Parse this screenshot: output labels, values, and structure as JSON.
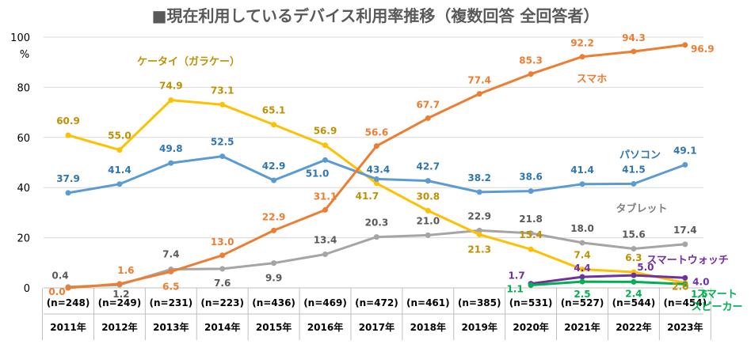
{
  "chart_data": {
    "type": "line",
    "title": "■現在利用しているデバイス利用率推移（複数回答 全回答者）",
    "ylabel_top": "100",
    "yunit": "%",
    "ylim": [
      0,
      100
    ],
    "yticks": [
      0,
      20,
      40,
      60,
      80,
      100
    ],
    "categories": [
      "2011年",
      "2012年",
      "2013年",
      "2014年",
      "2015年",
      "2016年",
      "2017年",
      "2018年",
      "2019年",
      "2020年",
      "2021年",
      "2022年",
      "2023年"
    ],
    "n_counts": [
      "(n=248)",
      "(n=249)",
      "(n=231)",
      "(n=223)",
      "(n=436)",
      "(n=469)",
      "(n=472)",
      "(n=461)",
      "(n=385)",
      "(n=531)",
      "(n=527)",
      "(n=544)",
      "(n=454)"
    ],
    "series": [
      {
        "name": "ケータイ（ガラケー）",
        "color": "#FFC000",
        "labelColor": "#BF9000",
        "values": [
          60.9,
          55.0,
          74.9,
          73.1,
          65.1,
          56.9,
          41.7,
          30.8,
          21.3,
          15.4,
          7.4,
          6.3,
          2.0
        ],
        "labels": [
          "60.9",
          "55.0",
          "74.9",
          "73.1",
          "65.1",
          "56.9",
          "41.7",
          "30.8",
          "21.3",
          "15.4",
          "7.4",
          "6.3",
          "2.0"
        ]
      },
      {
        "name": "スマホ",
        "color": "#ED7D31",
        "labelColor": "#ED7D31",
        "values": [
          0.0,
          1.6,
          6.5,
          13.0,
          22.9,
          31.1,
          56.6,
          67.7,
          77.4,
          85.3,
          92.2,
          94.3,
          96.9
        ],
        "labels": [
          "0.0",
          "1.6",
          "6.5",
          "13.0",
          "22.9",
          "31.1",
          "56.6",
          "67.7",
          "77.4",
          "85.3",
          "92.2",
          "94.3",
          "96.9"
        ]
      },
      {
        "name": "パソコン",
        "color": "#5B9BD5",
        "labelColor": "#2E75B6",
        "values": [
          37.9,
          41.4,
          49.8,
          52.5,
          42.9,
          51.0,
          43.4,
          42.7,
          38.2,
          38.6,
          41.4,
          41.5,
          49.1
        ],
        "labels": [
          "37.9",
          "41.4",
          "49.8",
          "52.5",
          "42.9",
          "51.0",
          "43.4",
          "42.7",
          "38.2",
          "38.6",
          "41.4",
          "41.5",
          "49.1"
        ]
      },
      {
        "name": "タブレット",
        "color": "#A5A5A5",
        "labelColor": "#595959",
        "values": [
          0.4,
          1.2,
          7.4,
          7.6,
          9.9,
          13.4,
          20.3,
          21.0,
          22.9,
          21.8,
          18.0,
          15.6,
          17.4
        ],
        "labels": [
          "0.4",
          "1.2",
          "7.4",
          "7.6",
          "9.9",
          "13.4",
          "20.3",
          "21.0",
          "22.9",
          "21.8",
          "18.0",
          "15.6",
          "17.4"
        ]
      },
      {
        "name": "スマートウォッチ",
        "color": "#7030A0",
        "labelColor": "#7030A0",
        "values": [
          null,
          null,
          null,
          null,
          null,
          null,
          null,
          null,
          null,
          1.7,
          4.4,
          5.0,
          4.0
        ],
        "labels": [
          null,
          null,
          null,
          null,
          null,
          null,
          null,
          null,
          null,
          "1.7",
          "4.4",
          "5.0",
          "4.0"
        ]
      },
      {
        "name": "スマートスピーカー",
        "name_lines": [
          "スマート",
          "スピーカー"
        ],
        "color": "#00B050",
        "labelColor": "#00B050",
        "values": [
          null,
          null,
          null,
          null,
          null,
          null,
          null,
          null,
          null,
          1.1,
          2.5,
          2.4,
          1.5
        ],
        "labels": [
          null,
          null,
          null,
          null,
          null,
          null,
          null,
          null,
          null,
          "1.1",
          "2.5",
          "2.4",
          "1.5"
        ]
      }
    ]
  }
}
